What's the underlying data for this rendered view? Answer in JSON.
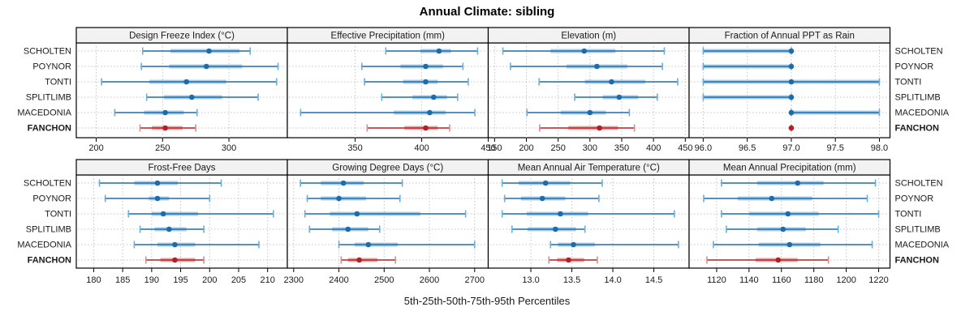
{
  "title": "Annual Climate: sibling",
  "caption": "5th-25th-50th-75th-95th Percentiles",
  "sites": [
    "SCHOLTEN",
    "POYNOR",
    "TONTI",
    "SPLITLIMB",
    "MACEDONIA",
    "FANCHON"
  ],
  "highlight_site": "FANCHON",
  "colors": {
    "blue_dark": "#1c6cab",
    "blue_band": "#a9cde6",
    "blue_cap": "#6baed6",
    "red_dark": "#b22025",
    "red_band": "#e4a7a7",
    "red_cap": "#d88c8c",
    "strip_bg": "#f2f2f2",
    "grid": "#c4c4c4",
    "border": "#000000",
    "text": "#1a1a1a"
  },
  "chart_data": [
    {
      "type": "dotplot-percentiles",
      "row": 0,
      "col": 0,
      "title": "Design Freeze Index (°C)",
      "xlim": [
        185,
        344
      ],
      "ticks": [
        200,
        250,
        300
      ],
      "tick_labels": [
        "200",
        "250",
        "300"
      ],
      "percentile_names": [
        "p5",
        "p25",
        "p50",
        "p75",
        "p95"
      ],
      "series": [
        {
          "name": "SCHOLTEN",
          "p": [
            235,
            256,
            285,
            308,
            316
          ]
        },
        {
          "name": "POYNOR",
          "p": [
            234,
            255,
            283,
            310,
            337
          ]
        },
        {
          "name": "TONTI",
          "p": [
            204,
            240,
            268,
            298,
            336
          ]
        },
        {
          "name": "SPLITLIMB",
          "p": [
            238,
            251,
            272,
            295,
            322
          ]
        },
        {
          "name": "MACEDONIA",
          "p": [
            214,
            236,
            252,
            266,
            276
          ]
        },
        {
          "name": "FANCHON",
          "p": [
            233,
            242,
            252,
            265,
            275
          ]
        }
      ]
    },
    {
      "type": "dotplot-percentiles",
      "row": 0,
      "col": 1,
      "title": "Effective Precipitation (mm)",
      "xlim": [
        299,
        450
      ],
      "ticks": [
        350,
        400,
        450
      ],
      "tick_labels": [
        "350",
        "400",
        "450"
      ],
      "series": [
        {
          "name": "SCHOLTEN",
          "p": [
            373,
            399,
            413,
            422,
            442
          ]
        },
        {
          "name": "POYNOR",
          "p": [
            355,
            384,
            403,
            416,
            431
          ]
        },
        {
          "name": "TONTI",
          "p": [
            357,
            386,
            403,
            412,
            435
          ]
        },
        {
          "name": "SPLITLIMB",
          "p": [
            370,
            393,
            409,
            419,
            427
          ]
        },
        {
          "name": "MACEDONIA",
          "p": [
            309,
            379,
            406,
            418,
            440
          ]
        },
        {
          "name": "FANCHON",
          "p": [
            359,
            387,
            403,
            412,
            421
          ]
        }
      ]
    },
    {
      "type": "dotplot-percentiles",
      "row": 0,
      "col": 2,
      "title": "Elevation (m)",
      "xlim": [
        140,
        456
      ],
      "ticks": [
        150,
        200,
        250,
        300,
        350,
        400,
        450
      ],
      "tick_labels": [
        "150",
        "200",
        "250",
        "300",
        "350",
        "400",
        "450"
      ],
      "series": [
        {
          "name": "SCHOLTEN",
          "p": [
            163,
            238,
            291,
            340,
            417
          ]
        },
        {
          "name": "POYNOR",
          "p": [
            175,
            263,
            311,
            359,
            414
          ]
        },
        {
          "name": "TONTI",
          "p": [
            220,
            292,
            334,
            387,
            438
          ]
        },
        {
          "name": "SPLITLIMB",
          "p": [
            276,
            320,
            346,
            376,
            406
          ]
        },
        {
          "name": "MACEDONIA",
          "p": [
            201,
            254,
            300,
            325,
            362
          ]
        },
        {
          "name": "FANCHON",
          "p": [
            221,
            266,
            315,
            344,
            370
          ]
        }
      ]
    },
    {
      "type": "dotplot-percentiles",
      "row": 0,
      "col": 3,
      "title": "Fraction of Annual PPT as Rain",
      "xlim": [
        95.84,
        98.12
      ],
      "ticks": [
        96.0,
        96.5,
        97.0,
        97.5,
        98.0
      ],
      "tick_labels": [
        "96.0",
        "96.5",
        "97.0",
        "97.5",
        "98.0"
      ],
      "series": [
        {
          "name": "SCHOLTEN",
          "p": [
            96,
            96,
            97,
            97,
            97
          ]
        },
        {
          "name": "POYNOR",
          "p": [
            96,
            96,
            97,
            97,
            97
          ]
        },
        {
          "name": "TONTI",
          "p": [
            96,
            96,
            97,
            98,
            98
          ]
        },
        {
          "name": "SPLITLIMB",
          "p": [
            96,
            96,
            97,
            97,
            97
          ]
        },
        {
          "name": "MACEDONIA",
          "p": [
            97,
            97,
            97,
            98,
            98
          ]
        },
        {
          "name": "FANCHON",
          "p": [
            97,
            97,
            97,
            97,
            97
          ]
        }
      ]
    },
    {
      "type": "dotplot-percentiles",
      "row": 1,
      "col": 0,
      "title": "Frost-Free Days",
      "xlim": [
        177,
        213.4
      ],
      "ticks": [
        180,
        185,
        190,
        195,
        200,
        205,
        210
      ],
      "tick_labels": [
        "180",
        "185",
        "190",
        "195",
        "200",
        "205",
        "210"
      ],
      "series": [
        {
          "name": "SCHOLTEN",
          "p": [
            181,
            187,
            191,
            194.5,
            202
          ]
        },
        {
          "name": "POYNOR",
          "p": [
            182,
            189.5,
            191,
            193,
            200
          ]
        },
        {
          "name": "TONTI",
          "p": [
            186,
            190,
            192,
            198,
            211
          ]
        },
        {
          "name": "SPLITLIMB",
          "p": [
            188,
            190.5,
            193,
            196,
            199
          ]
        },
        {
          "name": "MACEDONIA",
          "p": [
            187,
            191,
            194,
            197.5,
            208.5
          ]
        },
        {
          "name": "FANCHON",
          "p": [
            189,
            191.5,
            194,
            197.5,
            199
          ]
        }
      ]
    },
    {
      "type": "dotplot-percentiles",
      "row": 1,
      "col": 1,
      "title": "Growing Degree Days (°C)",
      "xlim": [
        2286,
        2730
      ],
      "ticks": [
        2300,
        2400,
        2500,
        2600,
        2700
      ],
      "tick_labels": [
        "2300",
        "2400",
        "2500",
        "2600",
        "2700"
      ],
      "series": [
        {
          "name": "SCHOLTEN",
          "p": [
            2315,
            2360,
            2410,
            2455,
            2540
          ]
        },
        {
          "name": "POYNOR",
          "p": [
            2330,
            2360,
            2400,
            2460,
            2535
          ]
        },
        {
          "name": "TONTI",
          "p": [
            2325,
            2380,
            2440,
            2580,
            2680
          ]
        },
        {
          "name": "SPLITLIMB",
          "p": [
            2335,
            2385,
            2420,
            2465,
            2490
          ]
        },
        {
          "name": "MACEDONIA",
          "p": [
            2400,
            2435,
            2465,
            2530,
            2700
          ]
        },
        {
          "name": "FANCHON",
          "p": [
            2405,
            2420,
            2445,
            2485,
            2525
          ]
        }
      ]
    },
    {
      "type": "dotplot-percentiles",
      "row": 1,
      "col": 2,
      "title": "Mean Annual Air Temperature (°C)",
      "xlim": [
        12.48,
        14.93
      ],
      "ticks": [
        13.0,
        13.5,
        14.0,
        14.5
      ],
      "tick_labels": [
        "13.0",
        "13.5",
        "14.0",
        "14.5"
      ],
      "series": [
        {
          "name": "SCHOLTEN",
          "p": [
            12.65,
            12.85,
            13.18,
            13.48,
            13.87
          ]
        },
        {
          "name": "POYNOR",
          "p": [
            12.68,
            12.88,
            13.14,
            13.42,
            13.83
          ]
        },
        {
          "name": "TONTI",
          "p": [
            12.65,
            12.95,
            13.36,
            13.7,
            14.75
          ]
        },
        {
          "name": "SPLITLIMB",
          "p": [
            12.77,
            12.96,
            13.3,
            13.55,
            13.66
          ]
        },
        {
          "name": "MACEDONIA",
          "p": [
            13.24,
            13.33,
            13.52,
            13.78,
            14.8
          ]
        },
        {
          "name": "FANCHON",
          "p": [
            13.22,
            13.32,
            13.46,
            13.65,
            13.81
          ]
        }
      ]
    },
    {
      "type": "dotplot-percentiles",
      "row": 1,
      "col": 3,
      "title": "Mean Annual Precipitation (mm)",
      "xlim": [
        1103,
        1227
      ],
      "ticks": [
        1120,
        1140,
        1160,
        1180,
        1200,
        1220
      ],
      "tick_labels": [
        "1120",
        "1140",
        "1160",
        "1180",
        "1200",
        "1220"
      ],
      "series": [
        {
          "name": "SCHOLTEN",
          "p": [
            1123,
            1145,
            1170,
            1186,
            1218
          ]
        },
        {
          "name": "POYNOR",
          "p": [
            1112,
            1133,
            1154,
            1179,
            1213
          ]
        },
        {
          "name": "TONTI",
          "p": [
            1123,
            1140,
            1164,
            1183,
            1220
          ]
        },
        {
          "name": "SPLITLIMB",
          "p": [
            1126,
            1145,
            1161,
            1175,
            1195
          ]
        },
        {
          "name": "MACEDONIA",
          "p": [
            1118,
            1146,
            1165,
            1184,
            1216
          ]
        },
        {
          "name": "FANCHON",
          "p": [
            1114,
            1144,
            1158,
            1170,
            1189
          ]
        }
      ]
    }
  ]
}
